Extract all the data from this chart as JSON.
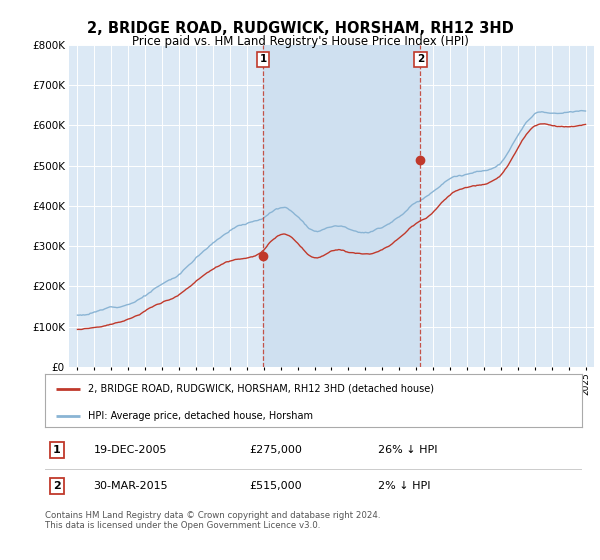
{
  "title": "2, BRIDGE ROAD, RUDGWICK, HORSHAM, RH12 3HD",
  "subtitle": "Price paid vs. HM Land Registry's House Price Index (HPI)",
  "hpi_color": "#8ab4d4",
  "property_color": "#c0392b",
  "marker_box_color": "#c0392b",
  "shade_color": "#cfe0f0",
  "plot_bg": "#dce9f5",
  "legend_line1": "2, BRIDGE ROAD, RUDGWICK, HORSHAM, RH12 3HD (detached house)",
  "legend_line2": "HPI: Average price, detached house, Horsham",
  "transaction1": {
    "label": "1",
    "date": "19-DEC-2005",
    "price": "£275,000",
    "pct": "26% ↓ HPI"
  },
  "transaction2": {
    "label": "2",
    "date": "30-MAR-2015",
    "price": "£515,000",
    "pct": "2% ↓ HPI"
  },
  "footer": "Contains HM Land Registry data © Crown copyright and database right 2024.\nThis data is licensed under the Open Government Licence v3.0.",
  "transaction1_x": 2005.97,
  "transaction1_y": 275000,
  "transaction2_x": 2015.25,
  "transaction2_y": 515000,
  "xlim": [
    1994.5,
    2025.5
  ],
  "ylim": [
    0,
    800000
  ],
  "yticks": [
    0,
    100000,
    200000,
    300000,
    400000,
    500000,
    600000,
    700000,
    800000
  ]
}
